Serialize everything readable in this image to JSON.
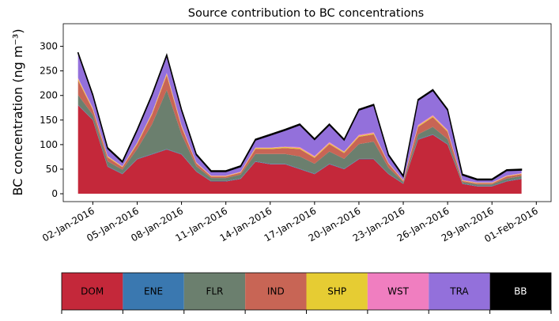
{
  "chart_data": {
    "type": "stacked_area",
    "title": "Source contribution to BC concentrations",
    "y_label": "BC concentration (ng m⁻³)",
    "x": [
      "2016-01-01",
      "2016-01-02",
      "2016-01-03",
      "2016-01-04",
      "2016-01-05",
      "2016-01-06",
      "2016-01-07",
      "2016-01-08",
      "2016-01-09",
      "2016-01-10",
      "2016-01-11",
      "2016-01-12",
      "2016-01-13",
      "2016-01-14",
      "2016-01-15",
      "2016-01-16",
      "2016-01-17",
      "2016-01-18",
      "2016-01-19",
      "2016-01-20",
      "2016-01-21",
      "2016-01-22",
      "2016-01-23",
      "2016-01-24",
      "2016-01-25",
      "2016-01-26",
      "2016-01-27",
      "2016-01-28",
      "2016-01-29",
      "2016-01-30",
      "2016-01-31"
    ],
    "xlim": [
      "2015-12-31",
      "2016-02-02"
    ],
    "xticks": [
      {
        "value": "2016-01-02",
        "label": "02-Jan-2016"
      },
      {
        "value": "2016-01-05",
        "label": "05-Jan-2016"
      },
      {
        "value": "2016-01-08",
        "label": "08-Jan-2016"
      },
      {
        "value": "2016-01-11",
        "label": "11-Jan-2016"
      },
      {
        "value": "2016-01-14",
        "label": "14-Jan-2016"
      },
      {
        "value": "2016-01-17",
        "label": "17-Jan-2016"
      },
      {
        "value": "2016-01-20",
        "label": "20-Jan-2016"
      },
      {
        "value": "2016-01-23",
        "label": "23-Jan-2016"
      },
      {
        "value": "2016-01-26",
        "label": "26-Jan-2016"
      },
      {
        "value": "2016-01-29",
        "label": "29-Jan-2016"
      },
      {
        "value": "2016-02-01",
        "label": "01-Feb-2016"
      }
    ],
    "ylim": [
      -16,
      346
    ],
    "yticks": [
      0,
      50,
      100,
      150,
      200,
      250,
      300
    ],
    "legend": "bottom",
    "series": [
      {
        "name": "DOM",
        "color": "#c4283a",
        "values": [
          180,
          150,
          55,
          40,
          70,
          80,
          90,
          80,
          45,
          25,
          25,
          30,
          65,
          60,
          60,
          50,
          40,
          60,
          50,
          70,
          70,
          40,
          20,
          110,
          120,
          100,
          20,
          15,
          15,
          25,
          30
        ]
      },
      {
        "name": "ENE",
        "color": "#3a78b0",
        "values": [
          1,
          1,
          1,
          1,
          1,
          1,
          1,
          1,
          1,
          1,
          1,
          1,
          1,
          1,
          1,
          1,
          1,
          1,
          1,
          1,
          1,
          1,
          1,
          1,
          1,
          1,
          1,
          1,
          1,
          1,
          1
        ]
      },
      {
        "name": "FLR",
        "color": "#6b7f6e",
        "values": [
          20,
          10,
          10,
          8,
          20,
          60,
          120,
          40,
          10,
          6,
          6,
          8,
          15,
          20,
          20,
          25,
          20,
          25,
          20,
          30,
          35,
          12,
          3,
          10,
          15,
          10,
          3,
          3,
          3,
          5,
          5
        ]
      },
      {
        "name": "IND",
        "color": "#c86555",
        "values": [
          30,
          10,
          8,
          5,
          10,
          20,
          30,
          15,
          6,
          3,
          3,
          4,
          10,
          10,
          12,
          15,
          12,
          15,
          12,
          15,
          15,
          8,
          2,
          15,
          20,
          15,
          2,
          2,
          2,
          4,
          4
        ]
      },
      {
        "name": "SHP",
        "color": "#e6cc33",
        "values": [
          3,
          2,
          2,
          1,
          2,
          2,
          3,
          2,
          1,
          1,
          1,
          1,
          2,
          2,
          2,
          2,
          2,
          2,
          2,
          2,
          2,
          1,
          1,
          2,
          2,
          2,
          1,
          1,
          1,
          1,
          1
        ]
      },
      {
        "name": "WST",
        "color": "#f07ec0",
        "values": [
          2,
          2,
          1,
          1,
          1,
          2,
          2,
          2,
          1,
          1,
          1,
          1,
          1,
          1,
          1,
          2,
          2,
          2,
          1,
          2,
          2,
          1,
          1,
          2,
          2,
          2,
          1,
          1,
          1,
          1,
          1
        ]
      },
      {
        "name": "TRA",
        "color": "#9370db",
        "values": [
          50,
          25,
          15,
          8,
          25,
          35,
          35,
          30,
          15,
          8,
          8,
          10,
          15,
          25,
          33,
          45,
          33,
          35,
          23,
          50,
          55,
          15,
          7,
          50,
          50,
          40,
          10,
          5,
          5,
          10,
          6
        ]
      },
      {
        "name": "BB",
        "color": "#000000",
        "values": [
          2,
          2,
          2,
          2,
          2,
          2,
          2,
          2,
          2,
          2,
          2,
          2,
          2,
          2,
          2,
          2,
          2,
          2,
          2,
          2,
          2,
          2,
          2,
          2,
          2,
          2,
          2,
          2,
          2,
          2,
          2
        ]
      }
    ]
  }
}
